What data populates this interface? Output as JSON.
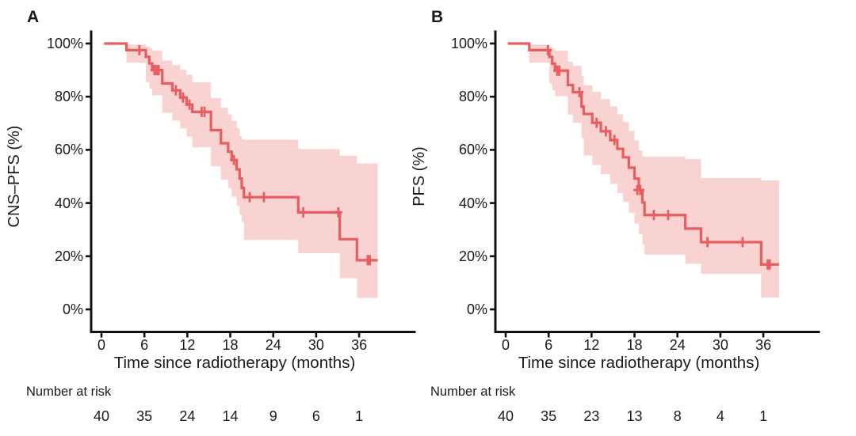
{
  "chart_data": [
    {
      "type": "line",
      "chart_style": "kaplan-meier-step-with-confidence-band",
      "panel_label": "A",
      "xlabel": "Time since radiotherapy (months)",
      "ylabel": "CNS–PFS (%)",
      "xlim": [
        -1.5,
        39.5
      ],
      "ylim": [
        0,
        100
      ],
      "xticks": [
        0,
        6,
        12,
        18,
        24,
        30,
        36
      ],
      "xtick_labels": [
        "0",
        "6",
        "12",
        "18",
        "24",
        "30",
        "36"
      ],
      "yticks": [
        0,
        20,
        40,
        60,
        80,
        100
      ],
      "ytick_labels": [
        "0%",
        "20%",
        "40%",
        "60%",
        "80%",
        "100%"
      ],
      "grid": false,
      "legend": false,
      "line_color": "#e85d5f",
      "ci_fill_color": "#f9d2d2",
      "axis_color": "#111111",
      "curve_start": 0.35,
      "curve_end": 38.6,
      "survival_steps_pct": [
        [
          0,
          100
        ],
        [
          3.5,
          97.5
        ],
        [
          6.2,
          95
        ],
        [
          6.7,
          92.5
        ],
        [
          7.1,
          90
        ],
        [
          8.5,
          85
        ],
        [
          9.9,
          82.4
        ],
        [
          11,
          79.7
        ],
        [
          11.9,
          77
        ],
        [
          12.7,
          74.3
        ],
        [
          15.3,
          67.4
        ],
        [
          16.7,
          62.5
        ],
        [
          17.7,
          59.3
        ],
        [
          18.2,
          56.2
        ],
        [
          18.9,
          52.7
        ],
        [
          19.3,
          49.2
        ],
        [
          19.6,
          45.7
        ],
        [
          19.9,
          42.2
        ],
        [
          27.5,
          36.5
        ],
        [
          33.3,
          26.4
        ],
        [
          35.7,
          18.5
        ]
      ],
      "censor_marks": [
        [
          5.3,
          97.5
        ],
        [
          7.4,
          90
        ],
        [
          7.7,
          90
        ],
        [
          8.0,
          90
        ],
        [
          10.4,
          82.4
        ],
        [
          11.4,
          79.7
        ],
        [
          12.3,
          77
        ],
        [
          14.0,
          74.3
        ],
        [
          14.4,
          74.3
        ],
        [
          18.5,
          56.2
        ],
        [
          20.7,
          42.2
        ],
        [
          22.7,
          42.2
        ],
        [
          28.2,
          36.5
        ],
        [
          33.1,
          36.5
        ],
        [
          37.2,
          18.5
        ],
        [
          37.5,
          18.5
        ]
      ],
      "ci_segments": [
        [
          3.5,
          6.2,
          92.8,
          99.6
        ],
        [
          6.2,
          6.7,
          85.5,
          98.9
        ],
        [
          6.7,
          7.1,
          83.0,
          98.2
        ],
        [
          7.1,
          8.5,
          80.5,
          97.4
        ],
        [
          8.5,
          9.9,
          74.0,
          93.6
        ],
        [
          9.9,
          11.0,
          71.0,
          91.9
        ],
        [
          11.0,
          11.9,
          68.0,
          90.1
        ],
        [
          11.9,
          12.7,
          65.0,
          88.2
        ],
        [
          12.7,
          15.3,
          61.0,
          85.4
        ],
        [
          15.3,
          16.7,
          53.8,
          79.5
        ],
        [
          16.7,
          17.7,
          48.8,
          75.9
        ],
        [
          17.7,
          18.2,
          45.6,
          73.4
        ],
        [
          18.2,
          18.9,
          42.4,
          70.9
        ],
        [
          18.9,
          19.3,
          38.9,
          68.1
        ],
        [
          19.3,
          19.6,
          35.6,
          65.2
        ],
        [
          19.6,
          19.9,
          32.9,
          63.9
        ],
        [
          19.9,
          27.5,
          26.1,
          63.8
        ],
        [
          27.5,
          33.3,
          21.1,
          60.3
        ],
        [
          33.3,
          35.7,
          11.7,
          57.8
        ],
        [
          35.7,
          38.6,
          4.3,
          54.9
        ]
      ],
      "number_at_risk": {
        "label": "Number at risk",
        "times": [
          0,
          6,
          12,
          18,
          24,
          30,
          36
        ],
        "counts": [
          "40",
          "35",
          "24",
          "14",
          "9",
          "6",
          "1"
        ]
      }
    },
    {
      "type": "line",
      "chart_style": "kaplan-meier-step-with-confidence-band",
      "panel_label": "B",
      "xlabel": "Time since radiotherapy (months)",
      "ylabel": "PFS (%)",
      "xlim": [
        -1.5,
        39.5
      ],
      "ylim": [
        0,
        100
      ],
      "xticks": [
        0,
        6,
        12,
        18,
        24,
        30,
        36
      ],
      "xtick_labels": [
        "0",
        "6",
        "12",
        "18",
        "24",
        "30",
        "36"
      ],
      "yticks": [
        0,
        20,
        40,
        60,
        80,
        100
      ],
      "ytick_labels": [
        "0%",
        "20%",
        "40%",
        "60%",
        "80%",
        "100%"
      ],
      "grid": false,
      "legend": false,
      "line_color": "#e85d5f",
      "ci_fill_color": "#f9d2d2",
      "axis_color": "#111111",
      "curve_start": 0.3,
      "curve_end": 38.2,
      "survival_steps_pct": [
        [
          0,
          100
        ],
        [
          3.3,
          97.5
        ],
        [
          6.1,
          95
        ],
        [
          6.5,
          92.4
        ],
        [
          6.9,
          89.8
        ],
        [
          8.7,
          84.4
        ],
        [
          9.4,
          81.7
        ],
        [
          10.6,
          76.3
        ],
        [
          10.9,
          73.5
        ],
        [
          12.1,
          70.2
        ],
        [
          13.3,
          67
        ],
        [
          14.6,
          63.7
        ],
        [
          15.6,
          60.4
        ],
        [
          16.4,
          57.2
        ],
        [
          17.2,
          53.3
        ],
        [
          18.0,
          49.2
        ],
        [
          18.6,
          44.9
        ],
        [
          19.1,
          40.2
        ],
        [
          19.4,
          35.5
        ],
        [
          25.1,
          30.4
        ],
        [
          27.3,
          25.3
        ],
        [
          35.7,
          16.9
        ]
      ],
      "censor_marks": [
        [
          5.9,
          97.5
        ],
        [
          7.2,
          89.8
        ],
        [
          7.5,
          89.8
        ],
        [
          10.3,
          81.7
        ],
        [
          12.7,
          70.2
        ],
        [
          14.0,
          67
        ],
        [
          15.2,
          63.7
        ],
        [
          18.4,
          44.9
        ],
        [
          18.8,
          44.9
        ],
        [
          20.7,
          35.5
        ],
        [
          22.7,
          35.5
        ],
        [
          28.2,
          25.3
        ],
        [
          33.1,
          25.3
        ],
        [
          36.6,
          16.9
        ],
        [
          36.9,
          16.9
        ]
      ],
      "ci_segments": [
        [
          3.3,
          6.1,
          92.8,
          99.6
        ],
        [
          6.1,
          6.5,
          85.0,
          98.8
        ],
        [
          6.5,
          6.9,
          82.5,
          98.1
        ],
        [
          6.9,
          8.7,
          80.2,
          97.3
        ],
        [
          8.7,
          9.4,
          73.3,
          93.1
        ],
        [
          9.4,
          10.6,
          70.2,
          91.6
        ],
        [
          10.6,
          10.9,
          64.5,
          87.9
        ],
        [
          10.9,
          12.1,
          57.9,
          84.3
        ],
        [
          12.1,
          13.3,
          54.3,
          81.8
        ],
        [
          13.3,
          14.6,
          50.8,
          79.1
        ],
        [
          14.6,
          15.6,
          47.2,
          76.3
        ],
        [
          15.6,
          16.4,
          43.8,
          73.4
        ],
        [
          16.4,
          17.2,
          40.4,
          70.5
        ],
        [
          17.2,
          18.0,
          36.4,
          67.1
        ],
        [
          18.0,
          18.6,
          32.3,
          63.5
        ],
        [
          18.6,
          19.1,
          28.2,
          59.8
        ],
        [
          19.1,
          19.4,
          24.5,
          57.6
        ],
        [
          19.4,
          25.1,
          20.6,
          57.4
        ],
        [
          25.1,
          27.3,
          17.2,
          56.5
        ],
        [
          27.3,
          35.7,
          13.4,
          49.4
        ],
        [
          35.7,
          38.2,
          4.5,
          48.5
        ]
      ],
      "number_at_risk": {
        "label": "Number at risk",
        "times": [
          0,
          6,
          12,
          18,
          24,
          30,
          36
        ],
        "counts": [
          "40",
          "35",
          "23",
          "13",
          "8",
          "4",
          "1"
        ]
      }
    }
  ]
}
